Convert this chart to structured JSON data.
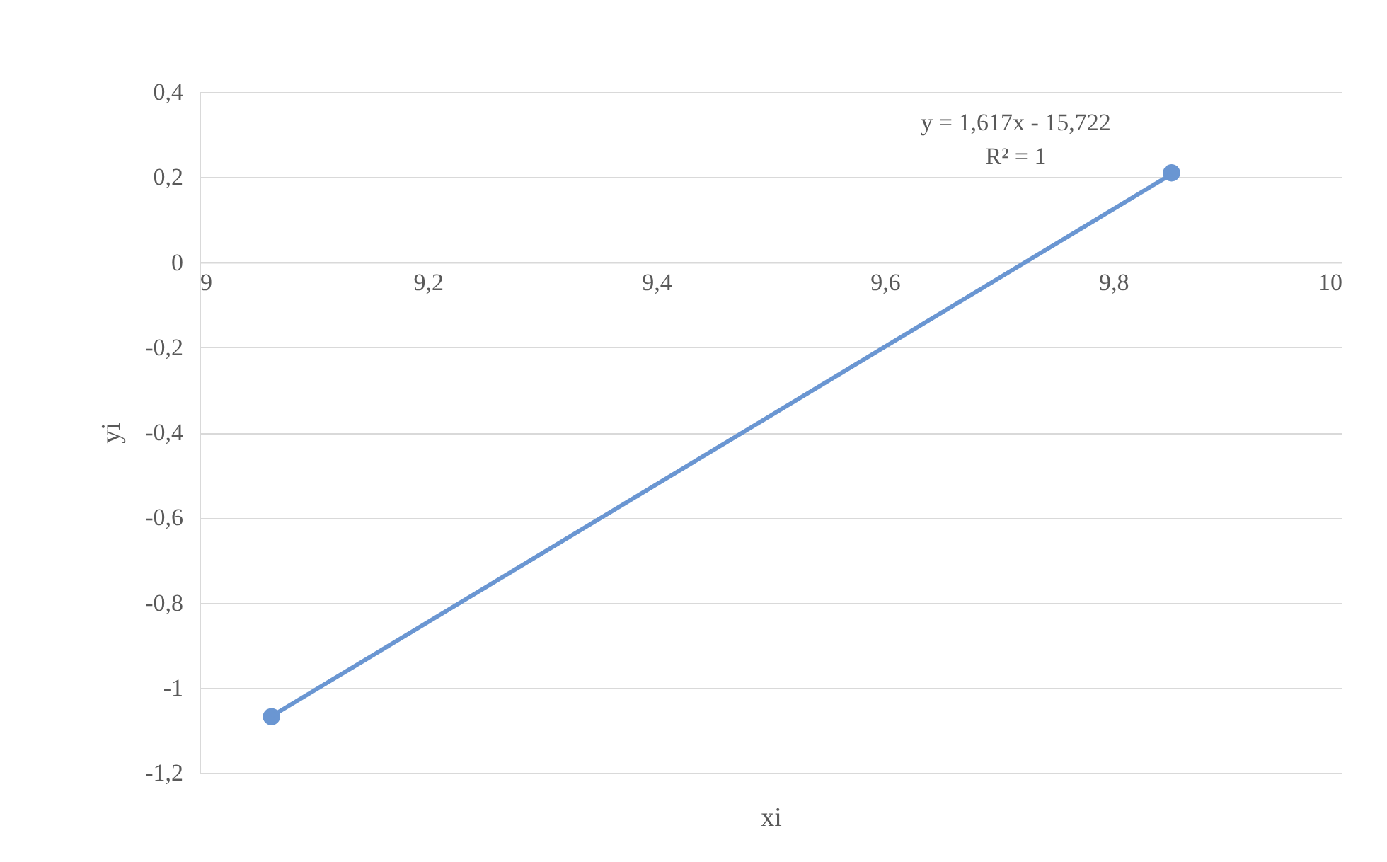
{
  "chart_data": {
    "type": "scatter",
    "xlabel": "xi",
    "ylabel": "yi",
    "x": [
      9.063,
      9.851
    ],
    "series": [
      {
        "color": "#6a96d2",
        "marker": "circle",
        "values": [
          -1.068,
          0.21
        ]
      },
      {
        "type": "line",
        "color": "#6a96d2",
        "marker": "none",
        "x": [
          9.063,
          9.851
        ],
        "values": [
          -1.067,
          0.207
        ]
      }
    ],
    "annotations": [
      "y = 1,617x - 15,722",
      "R² = 1"
    ],
    "xlim": [
      9,
      10
    ],
    "xticks": [
      9,
      {
        "value": 9.2,
        "label": "9,2"
      },
      {
        "value": 9.4,
        "label": "9,4"
      },
      {
        "value": 9.6,
        "label": "9,6"
      },
      {
        "value": 9.8,
        "label": "9,8"
      },
      10
    ],
    "ylim": [
      -1.2,
      0.4
    ],
    "yticks": [
      {
        "value": -1.2,
        "label": "-1,2"
      },
      -1,
      {
        "value": -0.8,
        "label": "-0,8"
      },
      {
        "value": -0.6,
        "label": "-0,6"
      },
      {
        "value": -0.4,
        "label": "-0,4"
      },
      {
        "value": -0.2,
        "label": "-0,2"
      },
      0,
      {
        "value": 0.2,
        "label": "0,2"
      },
      {
        "value": 0.4,
        "label": "0,4"
      }
    ],
    "grid": "y",
    "line_style": "solid"
  }
}
